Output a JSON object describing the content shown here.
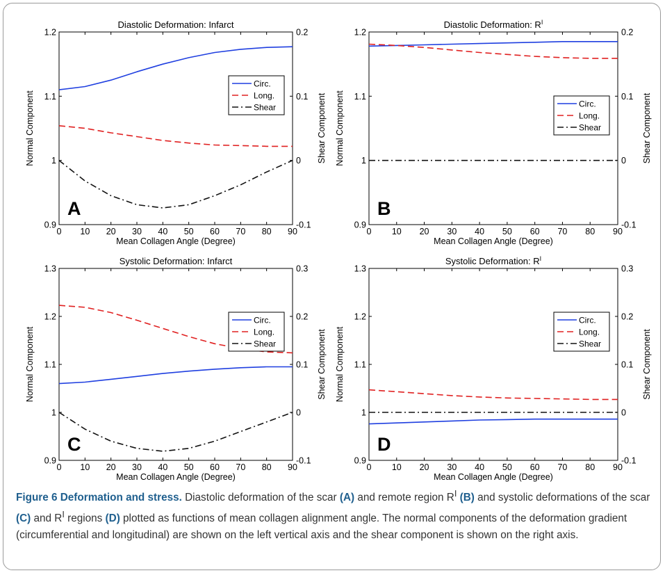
{
  "chart_data": [
    {
      "type": "line",
      "title": "Diastolic Deformation: Infarct",
      "xlabel": "Mean Collagen Angle (Degree)",
      "ylabel": "Normal Component",
      "y2label": "Shear Component",
      "xlim": [
        0,
        90
      ],
      "ylim": [
        0.9,
        1.2
      ],
      "y2lim": [
        -0.1,
        0.2
      ],
      "xticks": [
        "0",
        "10",
        "20",
        "30",
        "40",
        "50",
        "60",
        "70",
        "80",
        "90"
      ],
      "yticks": [
        "0.9",
        "1",
        "1.1",
        "1.2"
      ],
      "y2ticks": [
        "-0.1",
        "0",
        "0.1",
        "0.2"
      ],
      "panel_letter": "A",
      "legend_position": "top-right",
      "x": [
        0,
        10,
        20,
        30,
        40,
        50,
        60,
        70,
        80,
        90
      ],
      "series": [
        {
          "name": "Circ.",
          "axis": "left",
          "color": "#1f3fe0",
          "style": "solid",
          "values": [
            1.11,
            1.115,
            1.125,
            1.138,
            1.15,
            1.16,
            1.168,
            1.173,
            1.176,
            1.177
          ]
        },
        {
          "name": "Long.",
          "axis": "left",
          "color": "#e02020",
          "style": "dashed",
          "values": [
            1.054,
            1.05,
            1.043,
            1.037,
            1.031,
            1.027,
            1.024,
            1.023,
            1.022,
            1.022
          ]
        },
        {
          "name": "Shear",
          "axis": "right",
          "color": "#111111",
          "style": "dashdot",
          "values": [
            0.0,
            -0.032,
            -0.055,
            -0.069,
            -0.074,
            -0.069,
            -0.055,
            -0.038,
            -0.018,
            0.0
          ]
        }
      ]
    },
    {
      "type": "line",
      "title": "Diastolic Deformation: R",
      "title_sup": "I",
      "xlabel": "Mean Collagen Angle (Degree)",
      "ylabel": "Normal Component",
      "y2label": "Shear Component",
      "xlim": [
        0,
        90
      ],
      "ylim": [
        0.9,
        1.2
      ],
      "y2lim": [
        -0.1,
        0.2
      ],
      "xticks": [
        "0",
        "10",
        "20",
        "30",
        "40",
        "50",
        "60",
        "70",
        "80",
        "90"
      ],
      "yticks": [
        "0.9",
        "1",
        "1.1",
        "1.2"
      ],
      "y2ticks": [
        "-0.1",
        "0",
        "0.1",
        "0.2"
      ],
      "panel_letter": "B",
      "legend_position": "right",
      "x": [
        0,
        10,
        20,
        30,
        40,
        50,
        60,
        70,
        80,
        90
      ],
      "series": [
        {
          "name": "Circ.",
          "axis": "left",
          "color": "#1f3fe0",
          "style": "solid",
          "values": [
            1.178,
            1.179,
            1.18,
            1.181,
            1.182,
            1.183,
            1.184,
            1.185,
            1.185,
            1.185
          ]
        },
        {
          "name": "Long.",
          "axis": "left",
          "color": "#e02020",
          "style": "dashed",
          "values": [
            1.181,
            1.179,
            1.176,
            1.172,
            1.168,
            1.165,
            1.162,
            1.16,
            1.159,
            1.159
          ]
        },
        {
          "name": "Shear",
          "axis": "right",
          "color": "#111111",
          "style": "dashdot",
          "values": [
            0,
            0,
            0,
            0,
            0,
            0,
            0,
            0,
            0,
            0
          ]
        }
      ]
    },
    {
      "type": "line",
      "title": "Systolic Deformation: Infarct",
      "xlabel": "Mean Collagen Angle (Degree)",
      "ylabel": "Normal Component",
      "y2label": "Shear Component",
      "xlim": [
        0,
        90
      ],
      "ylim": [
        0.9,
        1.3
      ],
      "y2lim": [
        -0.1,
        0.3
      ],
      "xticks": [
        "0",
        "10",
        "20",
        "30",
        "40",
        "50",
        "60",
        "70",
        "80",
        "90"
      ],
      "yticks": [
        "0.9",
        "1",
        "1.1",
        "1.2",
        "1.3"
      ],
      "y2ticks": [
        "-0.1",
        "0",
        "0.1",
        "0.2",
        "0.3"
      ],
      "panel_letter": "C",
      "legend_position": "top-right",
      "x": [
        0,
        10,
        20,
        30,
        40,
        50,
        60,
        70,
        80,
        90
      ],
      "series": [
        {
          "name": "Circ.",
          "axis": "left",
          "color": "#1f3fe0",
          "style": "solid",
          "values": [
            1.06,
            1.063,
            1.069,
            1.075,
            1.081,
            1.086,
            1.09,
            1.093,
            1.095,
            1.095
          ]
        },
        {
          "name": "Long.",
          "axis": "left",
          "color": "#e02020",
          "style": "dashed",
          "values": [
            1.223,
            1.219,
            1.208,
            1.192,
            1.175,
            1.158,
            1.143,
            1.133,
            1.126,
            1.124
          ]
        },
        {
          "name": "Shear",
          "axis": "right",
          "color": "#111111",
          "style": "dashdot",
          "values": [
            0.0,
            -0.035,
            -0.06,
            -0.075,
            -0.081,
            -0.075,
            -0.06,
            -0.04,
            -0.02,
            0.0
          ]
        }
      ]
    },
    {
      "type": "line",
      "title": "Systolic Deformation: R",
      "title_sup": "I",
      "xlabel": "Mean Collagen Angle (Degree)",
      "ylabel": "Normal Component",
      "y2label": "Shear Component",
      "xlim": [
        0,
        90
      ],
      "ylim": [
        0.9,
        1.3
      ],
      "y2lim": [
        -0.1,
        0.3
      ],
      "xticks": [
        "0",
        "10",
        "20",
        "30",
        "40",
        "50",
        "60",
        "70",
        "80",
        "90"
      ],
      "yticks": [
        "0.9",
        "1",
        "1.1",
        "1.2",
        "1.3"
      ],
      "y2ticks": [
        "-0.1",
        "0",
        "0.1",
        "0.2",
        "0.3"
      ],
      "panel_letter": "D",
      "legend_position": "top-right",
      "x": [
        0,
        10,
        20,
        30,
        40,
        50,
        60,
        70,
        80,
        90
      ],
      "series": [
        {
          "name": "Circ.",
          "axis": "left",
          "color": "#1f3fe0",
          "style": "solid",
          "values": [
            0.976,
            0.978,
            0.98,
            0.982,
            0.984,
            0.985,
            0.986,
            0.986,
            0.986,
            0.986
          ]
        },
        {
          "name": "Long.",
          "axis": "left",
          "color": "#e02020",
          "style": "dashed",
          "values": [
            1.047,
            1.043,
            1.039,
            1.035,
            1.032,
            1.03,
            1.029,
            1.028,
            1.027,
            1.027
          ]
        },
        {
          "name": "Shear",
          "axis": "right",
          "color": "#111111",
          "style": "dashdot",
          "values": [
            0,
            0,
            0,
            0,
            0,
            0,
            0,
            0,
            0,
            0
          ]
        }
      ]
    }
  ],
  "caption": {
    "title": "Figure 6 Deformation and stress.",
    "p1": " Diastolic deformation of the scar ",
    "a": "(A)",
    "p2": " and remote region R",
    "sup1": "I",
    "p3": " ",
    "b": "(B)",
    "p4": " and systolic deformations of the scar ",
    "c": "(C)",
    "p5": " and R",
    "sup2": "I",
    "p6": " regions ",
    "d": "(D)",
    "p7": " plotted as functions of mean collagen alignment angle. The normal components of the deformation gradient (circumferential and longitudinal) are shown on the left vertical axis and the shear component is shown on the right axis."
  }
}
